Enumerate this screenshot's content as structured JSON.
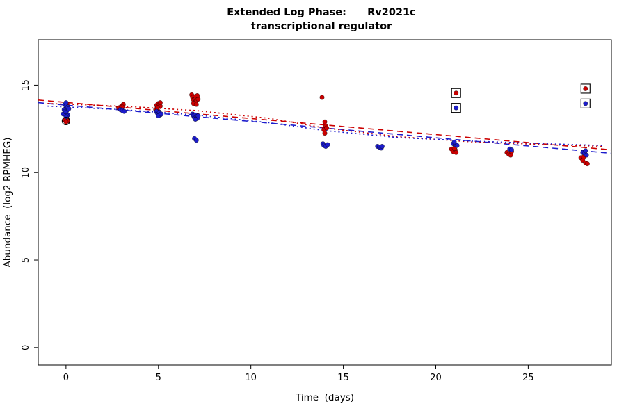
{
  "chart_data": {
    "type": "scatter",
    "title": "Extended Log Phase:      Rv2021c",
    "subtitle": "transcriptional regulator",
    "xlabel": "Time  (days)",
    "ylabel": "Abundance  (log2 RPMHEG)",
    "x_range": [
      -1.5,
      29.5
    ],
    "y_range": [
      -1,
      17.6
    ],
    "x_ticks": [
      0,
      5,
      10,
      15,
      20,
      25
    ],
    "y_ticks": [
      0,
      5,
      10,
      15
    ],
    "grid": false,
    "legend": "none",
    "colors": {
      "red_series": "#cc0000",
      "blue_series": "#1c1ccc",
      "axis": "#000000"
    },
    "series": [
      {
        "name": "red-condition",
        "color": "#cc0000",
        "marker": "filled-circle",
        "points": [
          [
            0.05,
            13.95
          ],
          [
            0.0,
            13.3
          ],
          [
            0.05,
            13.1
          ],
          [
            -0.05,
            13.0
          ],
          [
            0.1,
            12.95
          ],
          [
            0.0,
            12.9
          ],
          [
            2.85,
            13.7
          ],
          [
            3.0,
            13.8
          ],
          [
            3.1,
            13.9
          ],
          [
            3.05,
            13.75
          ],
          [
            4.85,
            13.6
          ],
          [
            4.9,
            13.85
          ],
          [
            5.0,
            13.95
          ],
          [
            5.05,
            13.9
          ],
          [
            5.1,
            13.8
          ],
          [
            4.95,
            13.7
          ],
          [
            5.0,
            13.5
          ],
          [
            5.1,
            14.0
          ],
          [
            6.8,
            14.45
          ],
          [
            6.85,
            14.3
          ],
          [
            6.9,
            14.15
          ],
          [
            6.95,
            14.25
          ],
          [
            7.0,
            14.35
          ],
          [
            7.0,
            14.2
          ],
          [
            7.05,
            14.1
          ],
          [
            7.1,
            14.3
          ],
          [
            7.15,
            14.2
          ],
          [
            6.9,
            13.95
          ],
          [
            7.05,
            13.9
          ],
          [
            7.1,
            14.4
          ],
          [
            13.85,
            14.3
          ],
          [
            14.0,
            12.9
          ],
          [
            14.05,
            12.65
          ],
          [
            13.95,
            12.45
          ],
          [
            14.0,
            12.25
          ],
          [
            14.1,
            12.55
          ],
          [
            20.85,
            11.35
          ],
          [
            20.95,
            11.2
          ],
          [
            21.05,
            11.3
          ],
          [
            21.1,
            11.15
          ],
          [
            21.0,
            11.4
          ],
          [
            23.85,
            11.15
          ],
          [
            23.95,
            11.05
          ],
          [
            24.05,
            11.0
          ],
          [
            24.1,
            11.2
          ],
          [
            27.85,
            10.85
          ],
          [
            27.95,
            10.7
          ],
          [
            28.0,
            10.9
          ],
          [
            28.1,
            10.55
          ],
          [
            28.2,
            10.5
          ]
        ]
      },
      {
        "name": "blue-condition",
        "color": "#1c1ccc",
        "marker": "filled-circle",
        "points": [
          [
            -0.15,
            13.35
          ],
          [
            -0.1,
            13.6
          ],
          [
            -0.05,
            13.9
          ],
          [
            0.0,
            14.0
          ],
          [
            0.0,
            13.8
          ],
          [
            0.05,
            13.7
          ],
          [
            0.1,
            13.75
          ],
          [
            0.05,
            13.55
          ],
          [
            -0.05,
            13.5
          ],
          [
            0.0,
            13.45
          ],
          [
            0.1,
            13.3
          ],
          [
            0.05,
            13.25
          ],
          [
            0.0,
            13.2
          ],
          [
            0.15,
            13.65
          ],
          [
            2.95,
            13.6
          ],
          [
            3.05,
            13.55
          ],
          [
            3.15,
            13.5
          ],
          [
            4.9,
            13.5
          ],
          [
            4.95,
            13.4
          ],
          [
            5.0,
            13.35
          ],
          [
            5.05,
            13.45
          ],
          [
            5.1,
            13.3
          ],
          [
            5.0,
            13.25
          ],
          [
            5.15,
            13.35
          ],
          [
            6.85,
            13.35
          ],
          [
            6.9,
            13.25
          ],
          [
            6.95,
            13.15
          ],
          [
            7.0,
            13.3
          ],
          [
            7.05,
            13.2
          ],
          [
            7.1,
            13.1
          ],
          [
            7.0,
            13.05
          ],
          [
            7.15,
            13.25
          ],
          [
            6.95,
            11.95
          ],
          [
            7.05,
            11.85
          ],
          [
            13.9,
            11.65
          ],
          [
            13.95,
            11.55
          ],
          [
            14.05,
            11.5
          ],
          [
            14.15,
            11.6
          ],
          [
            16.85,
            11.5
          ],
          [
            16.95,
            11.45
          ],
          [
            17.05,
            11.4
          ],
          [
            17.1,
            11.5
          ],
          [
            20.95,
            11.65
          ],
          [
            21.05,
            11.6
          ],
          [
            21.15,
            11.55
          ],
          [
            21.0,
            11.75
          ],
          [
            24.0,
            11.35
          ],
          [
            24.1,
            11.3
          ],
          [
            27.95,
            11.15
          ],
          [
            28.05,
            11.1
          ],
          [
            28.1,
            11.25
          ],
          [
            28.15,
            11.0
          ]
        ]
      }
    ],
    "flagged_points": [
      {
        "x": 21.1,
        "y": 14.55,
        "color": "#cc0000",
        "marker": "square-outline"
      },
      {
        "x": 21.1,
        "y": 13.7,
        "color": "#1c1ccc",
        "marker": "square-outline"
      },
      {
        "x": 28.1,
        "y": 14.8,
        "color": "#cc0000",
        "marker": "square-outline"
      },
      {
        "x": 28.1,
        "y": 13.95,
        "color": "#1c1ccc",
        "marker": "square-outline"
      },
      {
        "x": 0.0,
        "y": 12.95,
        "marker": "circle-outline"
      }
    ],
    "trend_lines": [
      {
        "name": "red-linear-fit",
        "color": "#cc0000",
        "style": "dashed",
        "points": [
          [
            -1.5,
            14.15
          ],
          [
            29.5,
            11.3
          ]
        ]
      },
      {
        "name": "blue-linear-fit",
        "color": "#1c1ccc",
        "style": "dashed",
        "points": [
          [
            -1.5,
            14.0
          ],
          [
            29.5,
            11.1
          ]
        ]
      },
      {
        "name": "red-smooth-fit",
        "color": "#cc0000",
        "style": "dotted",
        "points": [
          [
            -1,
            13.95
          ],
          [
            3,
            13.8
          ],
          [
            7,
            13.55
          ],
          [
            11,
            13.1
          ],
          [
            14,
            12.55
          ],
          [
            18,
            12.05
          ],
          [
            22,
            11.75
          ],
          [
            26,
            11.6
          ],
          [
            29,
            11.5
          ]
        ]
      },
      {
        "name": "blue-smooth-fit",
        "color": "#1c1ccc",
        "style": "dotted",
        "points": [
          [
            -1,
            13.8
          ],
          [
            3,
            13.6
          ],
          [
            7,
            13.3
          ],
          [
            11,
            12.85
          ],
          [
            14,
            12.4
          ],
          [
            18,
            12.0
          ],
          [
            22,
            11.8
          ],
          [
            26,
            11.65
          ],
          [
            29,
            11.55
          ]
        ]
      }
    ]
  }
}
